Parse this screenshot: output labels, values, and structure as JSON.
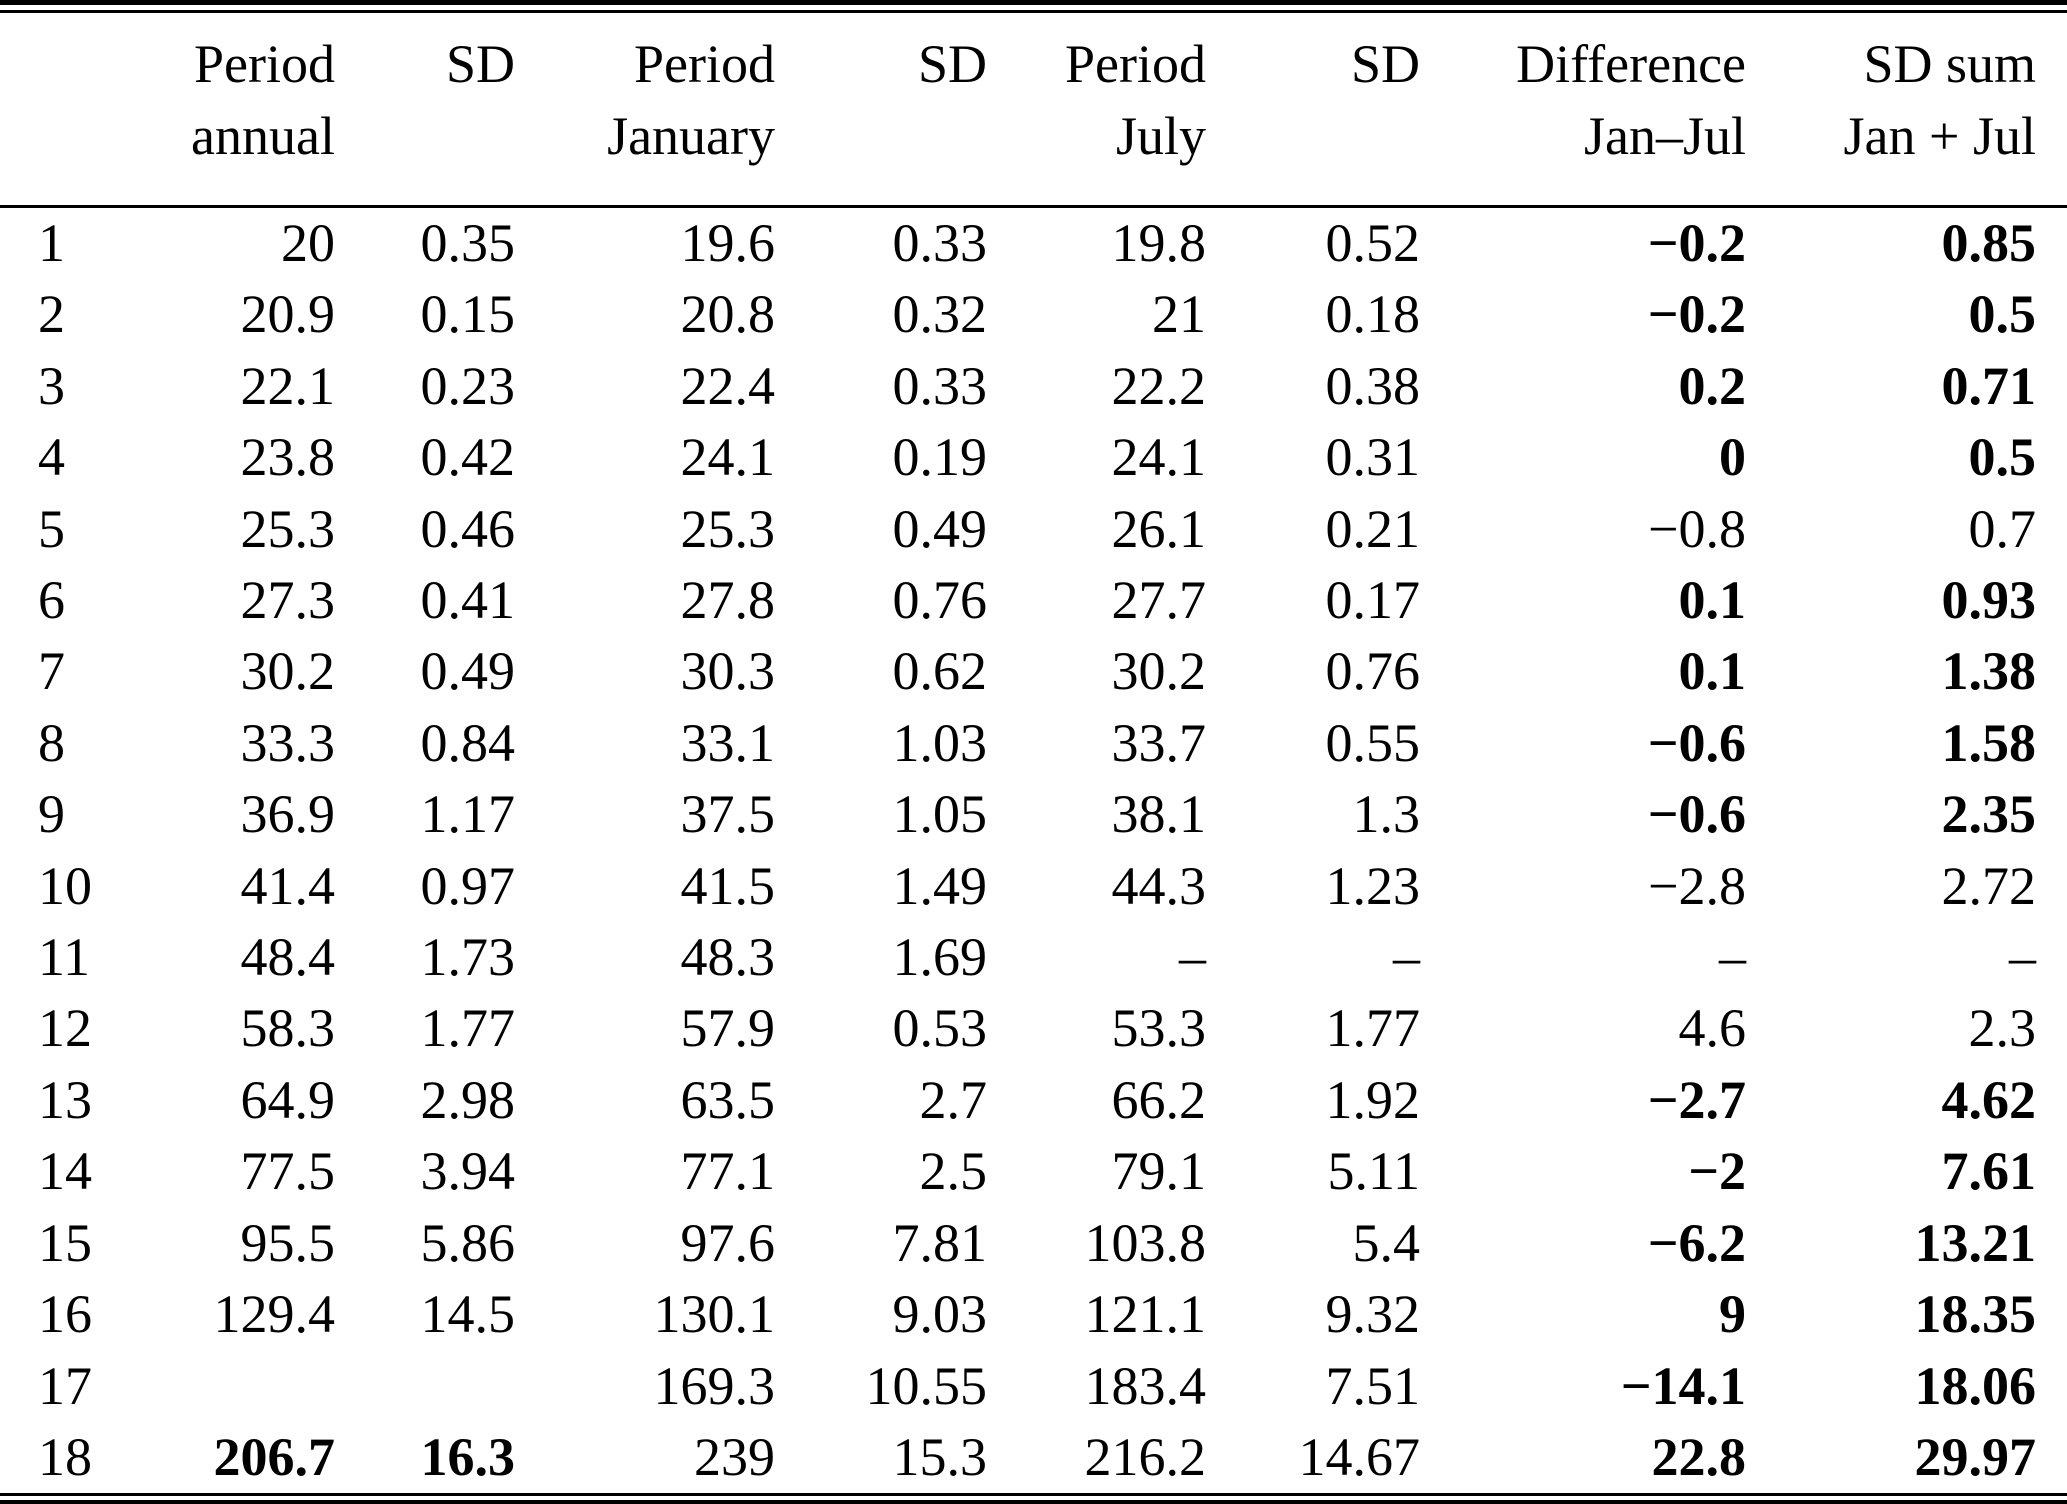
{
  "colors": {
    "text": "#000000",
    "background": "#ffffff",
    "rule": "#000000"
  },
  "table": {
    "columns": [
      {
        "id": "row-index",
        "header": [
          "",
          ""
        ]
      },
      {
        "id": "period-annual",
        "header": [
          "Period",
          "annual"
        ]
      },
      {
        "id": "sd-annual",
        "header": [
          "SD",
          ""
        ]
      },
      {
        "id": "period-january",
        "header": [
          "Period",
          "January"
        ]
      },
      {
        "id": "sd-january",
        "header": [
          "SD",
          ""
        ]
      },
      {
        "id": "period-july",
        "header": [
          "Period",
          "July"
        ]
      },
      {
        "id": "sd-july",
        "header": [
          "SD",
          ""
        ]
      },
      {
        "id": "difference-jan-jul",
        "header": [
          "Difference",
          "Jan–Jul"
        ]
      },
      {
        "id": "sd-sum-jan-jul",
        "header": [
          "SD sum",
          "Jan + Jul"
        ]
      }
    ],
    "rows": [
      {
        "index": "1",
        "values": [
          "20",
          "0.35",
          "19.6",
          "0.33",
          "19.8",
          "0.52",
          "−0.2",
          "0.85"
        ],
        "bold": [
          false,
          false,
          false,
          false,
          false,
          false,
          true,
          true
        ]
      },
      {
        "index": "2",
        "values": [
          "20.9",
          "0.15",
          "20.8",
          "0.32",
          "21",
          "0.18",
          "−0.2",
          "0.5"
        ],
        "bold": [
          false,
          false,
          false,
          false,
          false,
          false,
          true,
          true
        ]
      },
      {
        "index": "3",
        "values": [
          "22.1",
          "0.23",
          "22.4",
          "0.33",
          "22.2",
          "0.38",
          "0.2",
          "0.71"
        ],
        "bold": [
          false,
          false,
          false,
          false,
          false,
          false,
          true,
          true
        ]
      },
      {
        "index": "4",
        "values": [
          "23.8",
          "0.42",
          "24.1",
          "0.19",
          "24.1",
          "0.31",
          "0",
          "0.5"
        ],
        "bold": [
          false,
          false,
          false,
          false,
          false,
          false,
          true,
          true
        ]
      },
      {
        "index": "5",
        "values": [
          "25.3",
          "0.46",
          "25.3",
          "0.49",
          "26.1",
          "0.21",
          "−0.8",
          "0.7"
        ],
        "bold": [
          false,
          false,
          false,
          false,
          false,
          false,
          false,
          false
        ]
      },
      {
        "index": "6",
        "values": [
          "27.3",
          "0.41",
          "27.8",
          "0.76",
          "27.7",
          "0.17",
          "0.1",
          "0.93"
        ],
        "bold": [
          false,
          false,
          false,
          false,
          false,
          false,
          true,
          true
        ]
      },
      {
        "index": "7",
        "values": [
          "30.2",
          "0.49",
          "30.3",
          "0.62",
          "30.2",
          "0.76",
          "0.1",
          "1.38"
        ],
        "bold": [
          false,
          false,
          false,
          false,
          false,
          false,
          true,
          true
        ]
      },
      {
        "index": "8",
        "values": [
          "33.3",
          "0.84",
          "33.1",
          "1.03",
          "33.7",
          "0.55",
          "−0.6",
          "1.58"
        ],
        "bold": [
          false,
          false,
          false,
          false,
          false,
          false,
          true,
          true
        ]
      },
      {
        "index": "9",
        "values": [
          "36.9",
          "1.17",
          "37.5",
          "1.05",
          "38.1",
          "1.3",
          "−0.6",
          "2.35"
        ],
        "bold": [
          false,
          false,
          false,
          false,
          false,
          false,
          true,
          true
        ]
      },
      {
        "index": "10",
        "values": [
          "41.4",
          "0.97",
          "41.5",
          "1.49",
          "44.3",
          "1.23",
          "−2.8",
          "2.72"
        ],
        "bold": [
          false,
          false,
          false,
          false,
          false,
          false,
          false,
          false
        ]
      },
      {
        "index": "11",
        "values": [
          "48.4",
          "1.73",
          "48.3",
          "1.69",
          "–",
          "–",
          "–",
          "–"
        ],
        "bold": [
          false,
          false,
          false,
          false,
          false,
          false,
          false,
          false
        ]
      },
      {
        "index": "12",
        "values": [
          "58.3",
          "1.77",
          "57.9",
          "0.53",
          "53.3",
          "1.77",
          "4.6",
          "2.3"
        ],
        "bold": [
          false,
          false,
          false,
          false,
          false,
          false,
          false,
          false
        ]
      },
      {
        "index": "13",
        "values": [
          "64.9",
          "2.98",
          "63.5",
          "2.7",
          "66.2",
          "1.92",
          "−2.7",
          "4.62"
        ],
        "bold": [
          false,
          false,
          false,
          false,
          false,
          false,
          true,
          true
        ]
      },
      {
        "index": "14",
        "values": [
          "77.5",
          "3.94",
          "77.1",
          "2.5",
          "79.1",
          "5.11",
          "−2",
          "7.61"
        ],
        "bold": [
          false,
          false,
          false,
          false,
          false,
          false,
          true,
          true
        ]
      },
      {
        "index": "15",
        "values": [
          "95.5",
          "5.86",
          "97.6",
          "7.81",
          "103.8",
          "5.4",
          "−6.2",
          "13.21"
        ],
        "bold": [
          false,
          false,
          false,
          false,
          false,
          false,
          true,
          true
        ]
      },
      {
        "index": "16",
        "values": [
          "129.4",
          "14.5",
          "130.1",
          "9.03",
          "121.1",
          "9.32",
          "9",
          "18.35"
        ],
        "bold": [
          false,
          false,
          false,
          false,
          false,
          false,
          true,
          true
        ]
      },
      {
        "index": "17",
        "values": [
          "",
          "",
          "169.3",
          "10.55",
          "183.4",
          "7.51",
          "−14.1",
          "18.06"
        ],
        "bold": [
          false,
          false,
          false,
          false,
          false,
          false,
          true,
          true
        ]
      },
      {
        "index": "18",
        "values": [
          "206.7",
          "16.3",
          "239",
          "15.3",
          "216.2",
          "14.67",
          "22.8",
          "29.97"
        ],
        "bold": [
          true,
          true,
          false,
          false,
          false,
          false,
          true,
          true
        ]
      }
    ]
  }
}
